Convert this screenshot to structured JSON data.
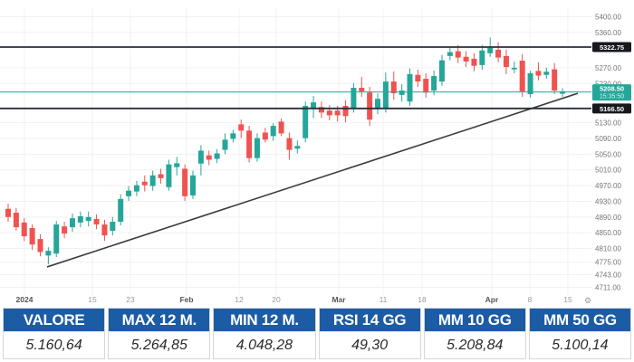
{
  "chart_data": {
    "type": "candlestick",
    "title": "",
    "up_color": "#26a69a",
    "down_color": "#ef5350",
    "grid": true,
    "price_axis_side": "right",
    "price_range": [
      4711,
      5400
    ],
    "candles": [
      [
        4911,
        4924,
        4878,
        4890
      ],
      [
        4901,
        4913,
        4855,
        4864
      ],
      [
        4876,
        4887,
        4829,
        4841
      ],
      [
        4862,
        4871,
        4806,
        4820
      ],
      [
        4834,
        4846,
        4790,
        4801
      ],
      [
        4792,
        4813,
        4769,
        4804
      ],
      [
        4797,
        4880,
        4788,
        4871
      ],
      [
        4866,
        4878,
        4836,
        4848
      ],
      [
        4864,
        4899,
        4852,
        4887
      ],
      [
        4876,
        4904,
        4864,
        4892
      ],
      [
        4880,
        4904,
        4866,
        4890
      ],
      [
        4885,
        4897,
        4859,
        4871
      ],
      [
        4871,
        4883,
        4829,
        4843
      ],
      [
        4855,
        4890,
        4843,
        4878
      ],
      [
        4878,
        4948,
        4869,
        4936
      ],
      [
        4943,
        4969,
        4931,
        4957
      ],
      [
        4955,
        4982,
        4943,
        4971
      ],
      [
        4980,
        4996,
        4955,
        4971
      ],
      [
        4969,
        5008,
        4957,
        4996
      ],
      [
        4999,
        5013,
        4975,
        4989
      ],
      [
        4966,
        5036,
        4957,
        5024
      ],
      [
        5017,
        5043,
        4996,
        5027
      ],
      [
        5013,
        5024,
        4931,
        4943
      ],
      [
        4945,
        5008,
        4936,
        4996
      ],
      [
        5026,
        5073,
        4996,
        5059
      ],
      [
        5047,
        5059,
        5022,
        5036
      ],
      [
        5038,
        5063,
        5027,
        5052
      ],
      [
        5061,
        5103,
        5050,
        5087
      ],
      [
        5089,
        5112,
        5080,
        5103
      ],
      [
        5126,
        5138,
        5091,
        5110
      ],
      [
        5110,
        5122,
        5029,
        5040
      ],
      [
        5040,
        5103,
        5031,
        5091
      ],
      [
        5105,
        5117,
        5080,
        5087
      ],
      [
        5096,
        5129,
        5084,
        5122
      ],
      [
        5133,
        5141,
        5096,
        5103
      ],
      [
        5091,
        5105,
        5036,
        5061
      ],
      [
        5064,
        5085,
        5052,
        5071
      ],
      [
        5091,
        5184,
        5080,
        5173
      ],
      [
        5168,
        5198,
        5142,
        5182
      ],
      [
        5170,
        5184,
        5142,
        5156
      ],
      [
        5161,
        5175,
        5136,
        5149
      ],
      [
        5161,
        5173,
        5133,
        5149
      ],
      [
        5173,
        5187,
        5131,
        5147
      ],
      [
        5168,
        5231,
        5156,
        5219
      ],
      [
        5219,
        5247,
        5196,
        5210
      ],
      [
        5207,
        5221,
        5122,
        5138
      ],
      [
        5166,
        5205,
        5152,
        5191
      ],
      [
        5168,
        5258,
        5156,
        5235
      ],
      [
        5235,
        5261,
        5189,
        5205
      ],
      [
        5201,
        5228,
        5184,
        5212
      ],
      [
        5184,
        5268,
        5173,
        5254
      ],
      [
        5252,
        5265,
        5221,
        5235
      ],
      [
        5242,
        5256,
        5194,
        5207
      ],
      [
        5212,
        5263,
        5200,
        5249
      ],
      [
        5235,
        5303,
        5224,
        5289
      ],
      [
        5300,
        5323,
        5289,
        5310
      ],
      [
        5312,
        5328,
        5282,
        5296
      ],
      [
        5298,
        5312,
        5272,
        5286
      ],
      [
        5293,
        5307,
        5261,
        5275
      ],
      [
        5277,
        5328,
        5265,
        5314
      ],
      [
        5307,
        5347,
        5298,
        5321
      ],
      [
        5316,
        5335,
        5284,
        5296
      ],
      [
        5300,
        5316,
        5254,
        5272
      ],
      [
        5266,
        5286,
        5256,
        5270
      ],
      [
        5288,
        5305,
        5196,
        5210
      ],
      [
        5203,
        5262,
        5194,
        5256
      ],
      [
        5262,
        5284,
        5238,
        5250
      ],
      [
        5252,
        5270,
        5242,
        5260
      ],
      [
        5266,
        5282,
        5203,
        5212
      ],
      [
        5204,
        5218,
        5196,
        5210
      ]
    ],
    "y_ticks": [
      {
        "label": "5400.00",
        "price": 5400
      },
      {
        "label": "5360.00",
        "price": 5360
      },
      {
        "label": "5270.00",
        "price": 5270
      },
      {
        "label": "5230.00",
        "price": 5230
      },
      {
        "label": "5130.00",
        "price": 5130
      },
      {
        "label": "5090.00",
        "price": 5090
      },
      {
        "label": "5050.00",
        "price": 5050
      },
      {
        "label": "5010.00",
        "price": 5010
      },
      {
        "label": "4970.00",
        "price": 4970
      },
      {
        "label": "4930.00",
        "price": 4930
      },
      {
        "label": "4890.00",
        "price": 4890
      },
      {
        "label": "4850.00",
        "price": 4850
      },
      {
        "label": "4810.00",
        "price": 4810
      },
      {
        "label": "4775.00",
        "price": 4775
      },
      {
        "label": "4743.00",
        "price": 4743
      },
      {
        "label": "4711.00",
        "price": 4711
      }
    ],
    "x_ticks": [
      {
        "label": "2024",
        "x": 27,
        "major": true
      },
      {
        "label": "15",
        "x": 102,
        "major": false
      },
      {
        "label": "23",
        "x": 144,
        "major": false
      },
      {
        "label": "Feb",
        "x": 206,
        "major": true
      },
      {
        "label": "12",
        "x": 264,
        "major": false
      },
      {
        "label": "20",
        "x": 305,
        "major": false
      },
      {
        "label": "Mar",
        "x": 374,
        "major": true
      },
      {
        "label": "11",
        "x": 423,
        "major": false
      },
      {
        "label": "18",
        "x": 466,
        "major": false
      },
      {
        "label": "Apr",
        "x": 543,
        "major": true
      },
      {
        "label": "8",
        "x": 585,
        "major": false
      },
      {
        "label": "15",
        "x": 627,
        "major": false
      }
    ],
    "price_levels": [
      {
        "label": "5322.75",
        "price": 5322.75,
        "line_color": "#2a2e39",
        "badge_bg": "#16181d"
      },
      {
        "label": "5166.50",
        "price": 5166.5,
        "line_color": "#2a2e39",
        "badge_bg": "#16181d"
      }
    ],
    "last_price": {
      "label": "5208.50",
      "price": 5208.5,
      "countdown": "15:35:50",
      "line_color": "#26a69a",
      "badge_bg": "#26a69a"
    },
    "trendline": {
      "from": {
        "x": 52,
        "price": 4763
      },
      "to": {
        "x": 638,
        "price": 5205
      }
    }
  },
  "icons": {
    "settings": "⚙"
  },
  "summary_table": {
    "columns": [
      {
        "header": "VALORE",
        "value": "5.160,64"
      },
      {
        "header": "MAX 12 M.",
        "value": "5.264,85"
      },
      {
        "header": "MIN 12 M.",
        "value": "4.048,28"
      },
      {
        "header": "RSI 14 GG",
        "value": "49,30"
      },
      {
        "header": "MM 10 GG",
        "value": "5.208,84"
      },
      {
        "header": "MM 50 GG",
        "value": "5.100,14"
      }
    ],
    "header_bg": "#1c5ca5",
    "header_text_color": "#ffffff"
  }
}
